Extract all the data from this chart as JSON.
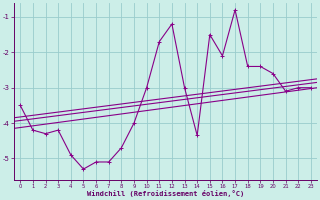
{
  "bg_color": "#cceee8",
  "line_color": "#880088",
  "grid_color": "#99cccc",
  "xlabel": "Windchill (Refroidissement éolien,°C)",
  "x_ticks": [
    0,
    1,
    2,
    3,
    4,
    5,
    6,
    7,
    8,
    9,
    10,
    11,
    12,
    13,
    14,
    15,
    16,
    17,
    18,
    19,
    20,
    21,
    22,
    23
  ],
  "y_ticks": [
    -5,
    -4,
    -3,
    -2,
    -1
  ],
  "ylim": [
    -5.6,
    -0.6
  ],
  "xlim": [
    -0.5,
    23.5
  ],
  "main_x": [
    0,
    1,
    2,
    3,
    4,
    5,
    6,
    7,
    8,
    9,
    10,
    11,
    12,
    13,
    14,
    15,
    16,
    17,
    18,
    19,
    20,
    21,
    22,
    23
  ],
  "main_y": [
    -3.5,
    -4.2,
    -4.3,
    -4.2,
    -4.9,
    -5.3,
    -5.1,
    -5.1,
    -4.7,
    -4.0,
    -3.0,
    -1.7,
    -1.2,
    -3.0,
    -4.35,
    -1.5,
    -2.1,
    -0.8,
    -2.4,
    -2.4,
    -2.6,
    -3.1,
    -3.0,
    -3.0
  ],
  "reg_lines": [
    {
      "x": [
        -0.5,
        23.5
      ],
      "y": [
        -3.85,
        -2.75
      ]
    },
    {
      "x": [
        -0.5,
        23.5
      ],
      "y": [
        -3.95,
        -2.85
      ]
    },
    {
      "x": [
        -0.5,
        23.5
      ],
      "y": [
        -4.15,
        -3.0
      ]
    }
  ]
}
